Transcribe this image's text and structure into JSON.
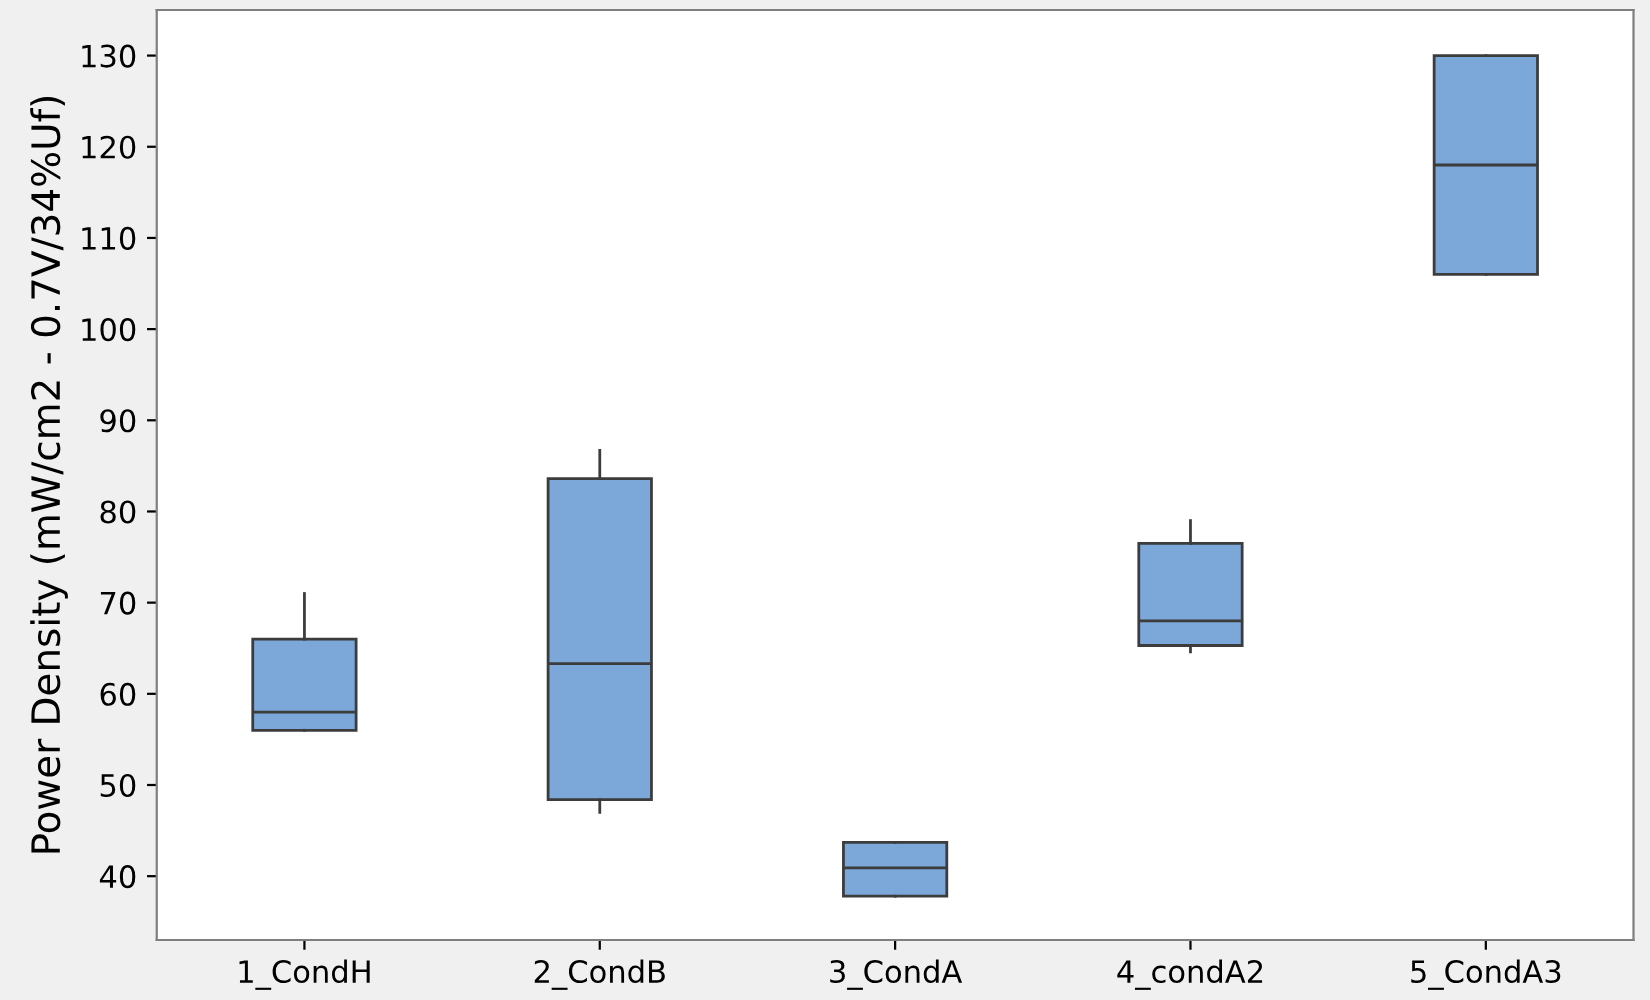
{
  "chart_data": {
    "type": "box",
    "ylabel": "Power Density (mW/cm2 - 0.7V/34%Uf)",
    "categories": [
      "1_CondH",
      "2_CondB",
      "3_CondA",
      "4_condA2",
      "5_CondA3"
    ],
    "color": "#7ba7d9",
    "boxes": [
      {
        "low": 56,
        "q1": 56,
        "median": 58,
        "q3": 66,
        "high": 71
      },
      {
        "low": 47,
        "q1": 48.4,
        "median": 63.3,
        "q3": 83.6,
        "high": 86.7
      },
      {
        "low": 37.8,
        "q1": 37.8,
        "median": 40.9,
        "q3": 43.7,
        "high": 43.7
      },
      {
        "low": 64.6,
        "q1": 65.3,
        "median": 68,
        "q3": 76.5,
        "high": 79
      },
      {
        "low": 106,
        "q1": 106,
        "median": 118,
        "q3": 130,
        "high": 130
      }
    ],
    "ylim": [
      33,
      135
    ],
    "yticks": [
      40,
      50,
      60,
      70,
      80,
      90,
      100,
      110,
      120,
      130
    ],
    "grid": false,
    "legend": false
  }
}
